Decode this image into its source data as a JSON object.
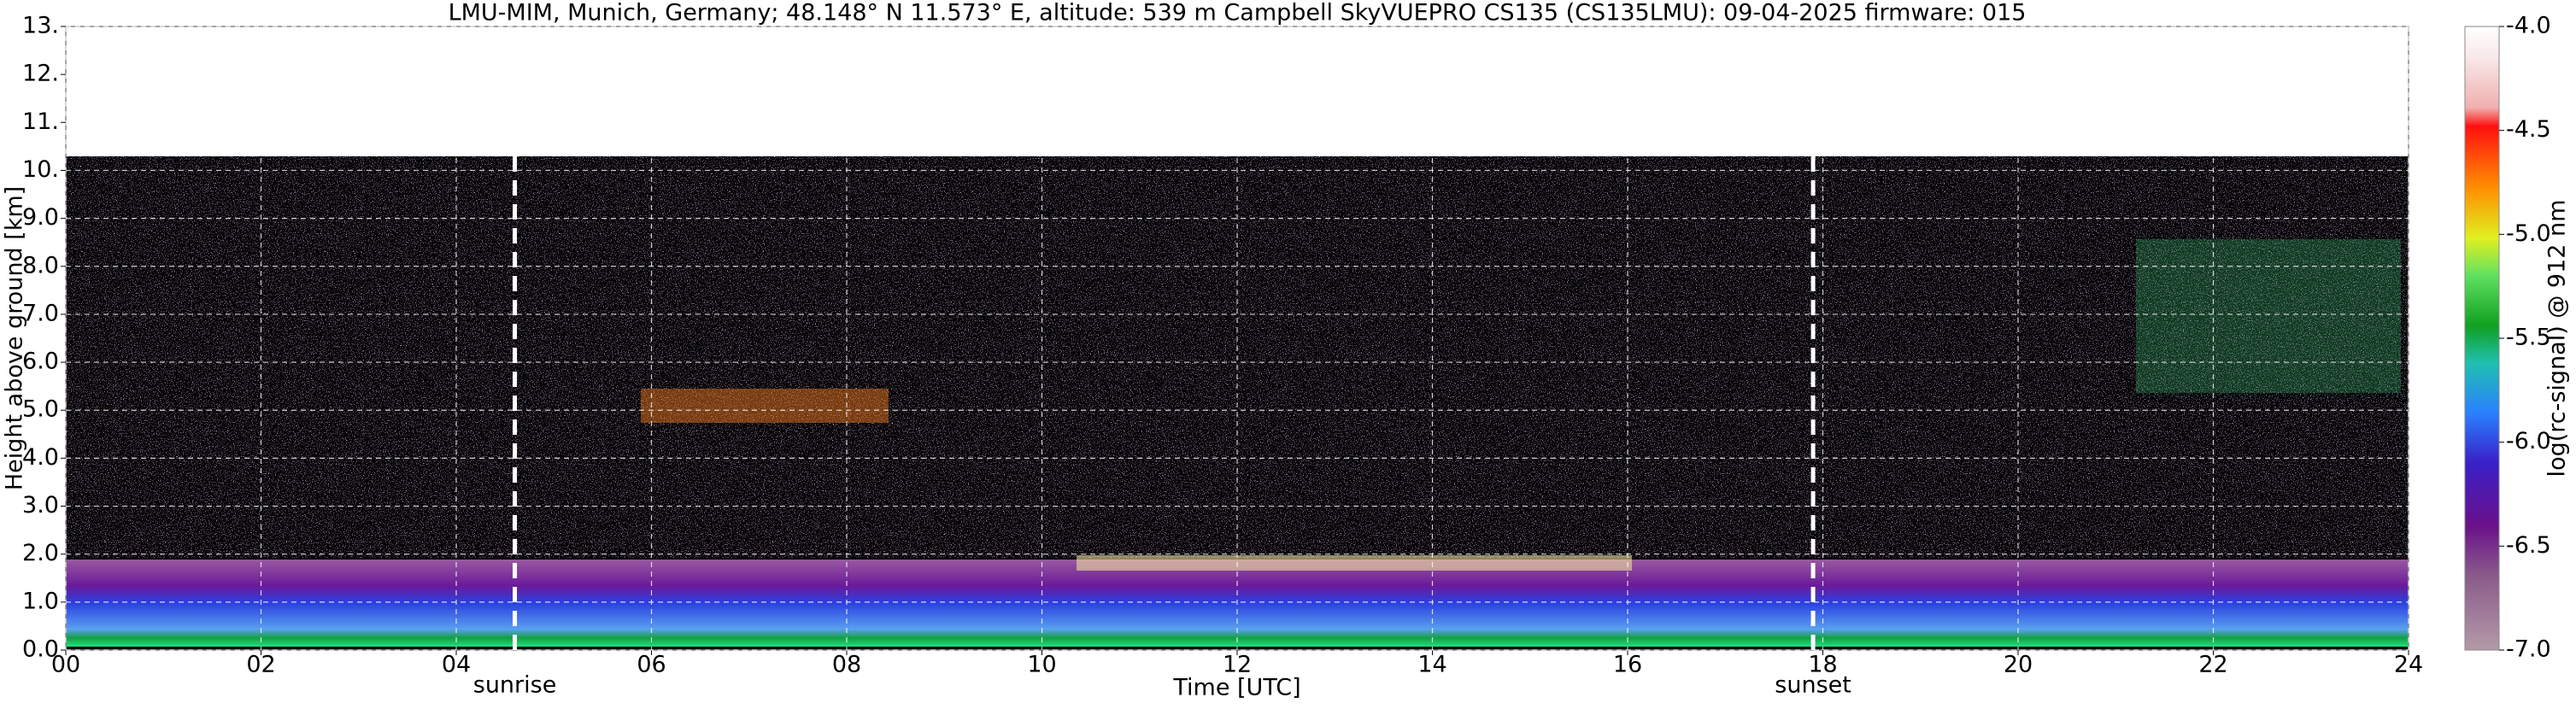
{
  "chart_data": {
    "type": "heatmap",
    "title": "LMU-MIM, Munich, Germany; 48.148° N 11.573° E, altitude: 539 m    Campbell SkyVUEPRO CS135 (CS135LMU): 09-04-2025    firmware: 015",
    "x_label": "Time [UTC]",
    "y_label": "Height above ground [km]",
    "colorbar_label": "log(rc-signal) @ 912 nm",
    "xlim": [
      0,
      24
    ],
    "xticks": [
      {
        "value": 0,
        "label": "00"
      },
      {
        "value": 2,
        "label": "02"
      },
      {
        "value": 4,
        "label": "04"
      },
      {
        "value": 6,
        "label": "06"
      },
      {
        "value": 8,
        "label": "08"
      },
      10,
      12,
      14,
      16,
      18,
      20,
      22,
      24
    ],
    "ylim": [
      0,
      13
    ],
    "yticks": [
      {
        "value": 0,
        "label": "0.0"
      },
      {
        "value": 1,
        "label": "1.0"
      },
      {
        "value": 2,
        "label": "2.0"
      },
      {
        "value": 3,
        "label": "3.0"
      },
      {
        "value": 4,
        "label": "4.0"
      },
      {
        "value": 5,
        "label": "5.0"
      },
      {
        "value": 6,
        "label": "6.0"
      },
      {
        "value": 7,
        "label": "7.0"
      },
      {
        "value": 8,
        "label": "8.0"
      },
      {
        "value": 9,
        "label": "9.0"
      },
      {
        "value": 10,
        "label": "10."
      },
      {
        "value": 11,
        "label": "11."
      },
      {
        "value": 12,
        "label": "12."
      },
      {
        "value": 13,
        "label": "13."
      }
    ],
    "clim": [
      -7,
      -4
    ],
    "cticks": [
      {
        "value": -4,
        "label": "-4.0"
      },
      {
        "value": -4.5,
        "label": "-4.5"
      },
      {
        "value": -5,
        "label": "-5.0"
      },
      {
        "value": -5.5,
        "label": "-5.5"
      },
      {
        "value": -6,
        "label": "-6.0"
      },
      {
        "value": -6.5,
        "label": "-6.5"
      },
      {
        "value": -7,
        "label": "-7.0"
      }
    ],
    "grid": true,
    "annotations": [
      {
        "text": "sunrise",
        "x": 4.6
      },
      {
        "text": "sunset",
        "x": 17.9
      }
    ]
  }
}
